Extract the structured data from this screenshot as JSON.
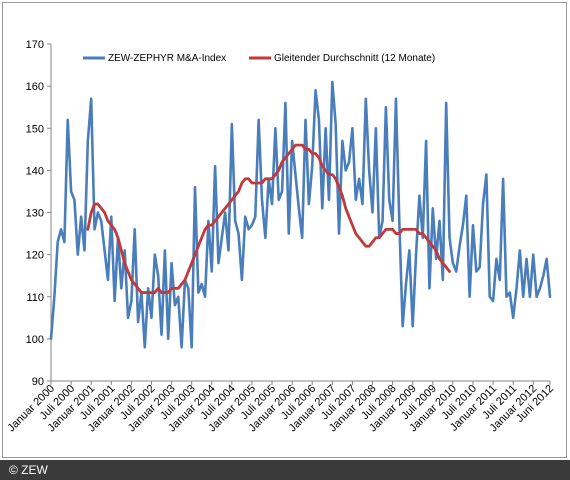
{
  "chart_data": {
    "type": "line",
    "ylim": [
      90,
      170
    ],
    "yticks": [
      90,
      100,
      110,
      120,
      130,
      140,
      150,
      160,
      170
    ],
    "xlim": [
      0,
      149
    ],
    "xticks": [
      {
        "i": 0,
        "label": "Januar 2000"
      },
      {
        "i": 6,
        "label": "Juli 2000"
      },
      {
        "i": 12,
        "label": "Januar 2001"
      },
      {
        "i": 18,
        "label": "Juli 2001"
      },
      {
        "i": 24,
        "label": "Januar 2002"
      },
      {
        "i": 30,
        "label": "Juli 2002"
      },
      {
        "i": 36,
        "label": "Januar 2003"
      },
      {
        "i": 42,
        "label": "Juli 2003"
      },
      {
        "i": 48,
        "label": "Januar 2004"
      },
      {
        "i": 54,
        "label": "Juli 2004"
      },
      {
        "i": 60,
        "label": "Januar 2005"
      },
      {
        "i": 66,
        "label": "Juli 2005"
      },
      {
        "i": 72,
        "label": "Januar 2006"
      },
      {
        "i": 78,
        "label": "Juli 2006"
      },
      {
        "i": 84,
        "label": "Januar 2007"
      },
      {
        "i": 90,
        "label": "Juli 2007"
      },
      {
        "i": 96,
        "label": "Januar 2008"
      },
      {
        "i": 102,
        "label": "Juli 2008"
      },
      {
        "i": 108,
        "label": "Januar 2009"
      },
      {
        "i": 114,
        "label": "Juli 2009"
      },
      {
        "i": 120,
        "label": "Januar 2010"
      },
      {
        "i": 126,
        "label": "Juli 2010"
      },
      {
        "i": 132,
        "label": "Januar 2011"
      },
      {
        "i": 138,
        "label": "Juli 2011"
      },
      {
        "i": 144,
        "label": "Januar 2012"
      },
      {
        "i": 149,
        "label": "Juni 2012"
      }
    ],
    "series": [
      {
        "name": "ZEW-ZEPHYR M&A-Index",
        "color": "#4a7ebb",
        "start_index": 0,
        "values": [
          100,
          110,
          123,
          126,
          123,
          152,
          135,
          133,
          120,
          129,
          121,
          147,
          157,
          126,
          130,
          128,
          121,
          114,
          129,
          109,
          124,
          112,
          121,
          105,
          109,
          126,
          104,
          111,
          98,
          112,
          105,
          120,
          115,
          101,
          121,
          100,
          118,
          108,
          110,
          98,
          114,
          112,
          98,
          136,
          111,
          113,
          110,
          128,
          116,
          141,
          118,
          124,
          130,
          121,
          151,
          128,
          125,
          114,
          129,
          126,
          127,
          129,
          152,
          133,
          124,
          138,
          132,
          150,
          133,
          135,
          156,
          125,
          147,
          139,
          131,
          124,
          152,
          132,
          141,
          159,
          152,
          131,
          150,
          133,
          161,
          151,
          125,
          147,
          140,
          142,
          150,
          133,
          138,
          132,
          157,
          140,
          130,
          150,
          124,
          128,
          155,
          133,
          128,
          157,
          128,
          103,
          113,
          121,
          103,
          120,
          134,
          124,
          147,
          112,
          131,
          119,
          128,
          114,
          156,
          124,
          118,
          116,
          122,
          127,
          134,
          110,
          127,
          116,
          117,
          132,
          139,
          110,
          109,
          119,
          114,
          138,
          110,
          111,
          105,
          112,
          121,
          110,
          119,
          110,
          120,
          110,
          112,
          115,
          119,
          110
        ]
      },
      {
        "name": "Gleitender Durchschnitt (12 Monate)",
        "color": "#c0393b",
        "start_index": 11,
        "values": [
          126,
          130,
          132,
          132,
          131,
          130,
          128,
          127,
          126,
          124,
          121,
          118,
          116,
          114,
          113,
          112,
          111,
          111,
          111,
          111,
          111,
          112,
          111,
          111,
          111,
          112,
          112,
          112,
          113,
          114,
          116,
          118,
          120,
          122,
          124,
          126,
          127,
          127,
          128,
          129,
          130,
          131,
          132,
          133,
          134,
          135,
          137,
          138,
          138,
          137,
          137,
          137,
          137,
          138,
          138,
          138,
          139,
          140,
          142,
          143,
          144,
          145,
          146,
          146,
          146,
          145,
          145,
          144,
          144,
          143,
          141,
          140,
          139,
          139,
          138,
          136,
          134,
          131,
          129,
          127,
          125,
          124,
          123,
          122,
          122,
          123,
          124,
          124,
          125,
          126,
          126,
          126,
          125,
          125,
          126,
          126,
          126,
          126,
          126,
          125,
          125,
          124,
          123,
          122,
          121,
          119,
          118,
          117,
          116
        ]
      }
    ]
  },
  "footer": {
    "copyright": "© ZEW"
  }
}
